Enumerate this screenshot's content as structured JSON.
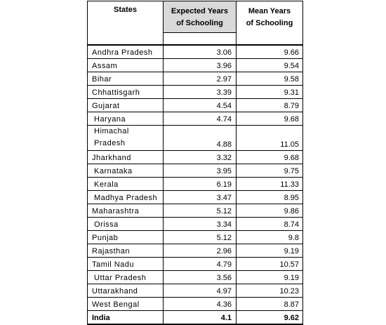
{
  "table": {
    "headers": {
      "states": "States",
      "expected_line1": "Expected Years",
      "expected_line2": "of Schooling",
      "mean_line1": "Mean Years",
      "mean_line2": "of Schooling"
    },
    "rows": [
      {
        "state": "Andhra Pradesh",
        "expected": "3.06",
        "mean": "9.66"
      },
      {
        "state": "Assam",
        "expected": "3.96",
        "mean": "9.54"
      },
      {
        "state": "Bihar",
        "expected": "2.97",
        "mean": "9.58"
      },
      {
        "state": "Chhattisgarh",
        "expected": "3.39",
        "mean": "9.31"
      },
      {
        "state": "Gujarat",
        "expected": "4.54",
        "mean": "8.79"
      },
      {
        "state": "Haryana",
        "expected": "4.74",
        "mean": "9.68"
      },
      {
        "state": "Himachal Pradesh",
        "state_line1": "Himachal",
        "state_line2": "Pradesh",
        "expected": "4.88",
        "mean": "11.05"
      },
      {
        "state": "Jharkhand",
        "expected": "3.32",
        "mean": "9.68"
      },
      {
        "state": "Karnataka",
        "expected": "3.95",
        "mean": "9.75"
      },
      {
        "state": "Kerala",
        "expected": "6.19",
        "mean": "11.33"
      },
      {
        "state": "Madhya Pradesh",
        "expected": "3.47",
        "mean": "8.95"
      },
      {
        "state": "Maharashtra",
        "expected": "5.12",
        "mean": "9.86"
      },
      {
        "state": "Orissa",
        "expected": "3.34",
        "mean": "8.74"
      },
      {
        "state": "Punjab",
        "expected": "5.12",
        "mean": "9.8"
      },
      {
        "state": "Rajasthan",
        "expected": "2.96",
        "mean": "9.19"
      },
      {
        "state": "Tamil Nadu",
        "expected": "4.79",
        "mean": "10.57"
      },
      {
        "state": "Uttar Pradesh",
        "expected": "3.56",
        "mean": "9.19"
      },
      {
        "state": "Uttarakhand",
        "expected": "4.97",
        "mean": "10.23"
      },
      {
        "state": "West Bengal",
        "expected": "4.36",
        "mean": "8.87"
      }
    ],
    "total": {
      "state": "India",
      "expected": "4.1",
      "mean": "9.62"
    }
  }
}
